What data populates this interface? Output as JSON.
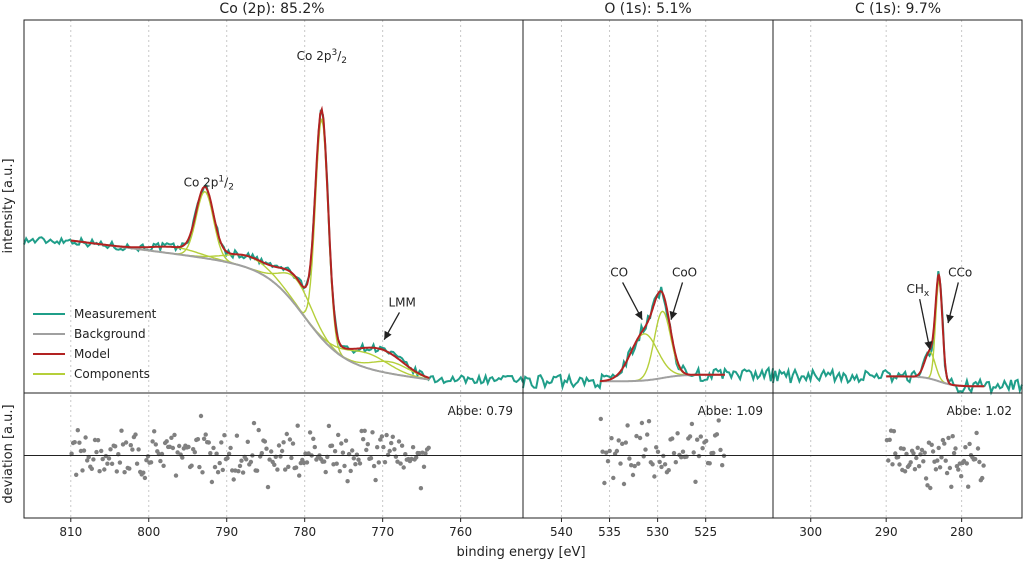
{
  "colors": {
    "measurement": "#1f9e89",
    "background": "#a0a0a0",
    "model": "#b22222",
    "components": "#b5cf3a",
    "residual": "#808080",
    "frame": "#222222",
    "grid": "#c8c8c8"
  },
  "chart_data": {
    "type": "line",
    "xlabel": "binding energy [eV]",
    "ylabel_top": "intensity [a.u.]",
    "ylabel_bottom": "deviation [a.u.]",
    "legend": {
      "placement": "lower-left of first panel",
      "entries": [
        "Measurement",
        "Background",
        "Model",
        "Components"
      ]
    },
    "panels": [
      {
        "id": "co",
        "title": "Co (2p): 85.2%",
        "xlim": [
          816,
          752
        ],
        "ticks": [
          810,
          800,
          790,
          780,
          770,
          760
        ],
        "ylim": [
          0,
          1.12
        ],
        "baseline": 0.04,
        "abbe": "Abbe: 0.79",
        "meas_range": [
          816,
          752
        ],
        "fit_range": [
          810,
          764
        ],
        "background": {
          "left": 0.32,
          "right": 0.04,
          "step_center": 780,
          "step_width": 2.5,
          "slope": 0.003
        },
        "peaks": [
          {
            "center": 777.8,
            "amp": 0.66,
            "width": 0.8
          },
          {
            "center": 792.8,
            "amp": 0.2,
            "width": 1.1
          },
          {
            "center": 781.0,
            "amp": 0.08,
            "width": 2.0
          },
          {
            "center": 787.0,
            "amp": 0.035,
            "width": 3.0
          },
          {
            "center": 796.5,
            "amp": 0.02,
            "width": 3.0
          },
          {
            "center": 772.0,
            "amp": 0.045,
            "width": 2.8
          },
          {
            "center": 769.0,
            "amp": 0.035,
            "width": 2.4
          }
        ],
        "annotations": [
          {
            "label": "Co 2p",
            "sup": "3",
            "sub": "2",
            "x": 777.8,
            "y": 1.0
          },
          {
            "label": "Co 2p",
            "sup": "1",
            "sub": "2",
            "x": 792.3,
            "y": 0.62
          }
        ],
        "arrow_annotations": [
          {
            "label": "LMM",
            "text_x": 767.5,
            "text_y": 0.26,
            "tip_x": 769.8,
            "tip_y": 0.16
          }
        ]
      },
      {
        "id": "o",
        "title": "O (1s): 5.1%",
        "xlim": [
          544,
          518
        ],
        "ticks": [
          540,
          535,
          530,
          525
        ],
        "ylim": [
          0,
          1.12
        ],
        "baseline": 0.04,
        "abbe": "Abbe: 1.09",
        "meas_range": [
          544,
          518
        ],
        "fit_range": [
          536,
          523
        ],
        "background": {
          "left": 0.035,
          "right": 0.055,
          "step_center": 529.5,
          "step_width": 1.0,
          "slope": 0.0
        },
        "peaks": [
          {
            "center": 529.5,
            "amp": 0.2,
            "width": 0.85
          },
          {
            "center": 531.4,
            "amp": 0.14,
            "width": 1.4
          }
        ],
        "annotations": [],
        "arrow_annotations": [
          {
            "label": "CO",
            "text_x": 534.0,
            "text_y": 0.35,
            "tip_x": 531.6,
            "tip_y": 0.22
          },
          {
            "label": "CoO",
            "text_x": 527.2,
            "text_y": 0.35,
            "tip_x": 528.6,
            "tip_y": 0.22
          }
        ]
      },
      {
        "id": "c",
        "title": "C (1s): 9.7%",
        "xlim": [
          305,
          272
        ],
        "ticks": [
          300,
          290,
          280
        ],
        "ylim": [
          0,
          1.12
        ],
        "baseline": 0.04,
        "abbe": "Abbe: 1.02",
        "meas_range": [
          305,
          272
        ],
        "fit_range": [
          290,
          277
        ],
        "background": {
          "left": 0.05,
          "right": 0.02,
          "step_center": 283,
          "step_width": 1.0,
          "slope": 0.0
        },
        "peaks": [
          {
            "center": 283.0,
            "amp": 0.3,
            "width": 0.45
          },
          {
            "center": 284.2,
            "amp": 0.08,
            "width": 0.7
          }
        ],
        "annotations": [],
        "arrow_annotations": [
          {
            "label": "CH",
            "sub": "x",
            "text_x": 285.8,
            "text_y": 0.3,
            "tip_x": 284.2,
            "tip_y": 0.13
          },
          {
            "label": "CCo",
            "text_x": 280.2,
            "text_y": 0.35,
            "tip_x": 281.8,
            "tip_y": 0.21
          }
        ]
      }
    ]
  }
}
